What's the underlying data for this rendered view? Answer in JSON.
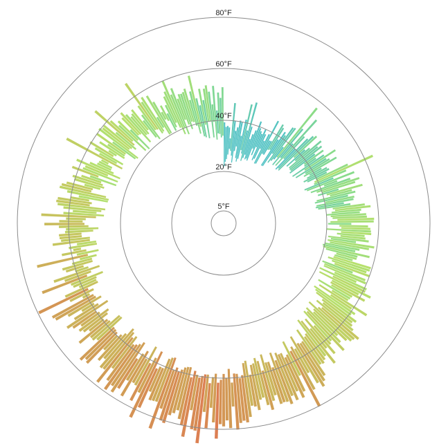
{
  "chart_data": {
    "type": "bar",
    "subtype": "radial",
    "title": "",
    "rings": [
      {
        "value": 5,
        "label": "5°F"
      },
      {
        "value": 20,
        "label": "20°F"
      },
      {
        "value": 40,
        "label": "40°F"
      },
      {
        "value": 60,
        "label": "60°F"
      },
      {
        "value": 80,
        "label": "80°F"
      }
    ],
    "radial_range": [
      0,
      80
    ],
    "bar_count": 365,
    "color_stops": [
      {
        "temp": 35,
        "color": "#52c2c4"
      },
      {
        "temp": 45,
        "color": "#8bdc88"
      },
      {
        "temp": 52,
        "color": "#b6e06c"
      },
      {
        "temp": 60,
        "color": "#c7c45e"
      },
      {
        "temp": 68,
        "color": "#d29a55"
      },
      {
        "temp": 78,
        "color": "#e8604f"
      }
    ],
    "profile_keyframes": [
      {
        "day": 0,
        "min": 26,
        "max": 35
      },
      {
        "day": 20,
        "min": 28,
        "max": 38
      },
      {
        "day": 40,
        "min": 32,
        "max": 43
      },
      {
        "day": 60,
        "min": 36,
        "max": 48
      },
      {
        "day": 80,
        "min": 40,
        "max": 52
      },
      {
        "day": 100,
        "min": 43,
        "max": 55
      },
      {
        "day": 120,
        "min": 45,
        "max": 60
      },
      {
        "day": 140,
        "min": 50,
        "max": 67
      },
      {
        "day": 160,
        "min": 55,
        "max": 72
      },
      {
        "day": 180,
        "min": 58,
        "max": 76
      },
      {
        "day": 200,
        "min": 59,
        "max": 77
      },
      {
        "day": 220,
        "min": 58,
        "max": 74
      },
      {
        "day": 240,
        "min": 56,
        "max": 68
      },
      {
        "day": 260,
        "min": 53,
        "max": 62
      },
      {
        "day": 280,
        "min": 50,
        "max": 62
      },
      {
        "day": 300,
        "min": 47,
        "max": 58
      },
      {
        "day": 320,
        "min": 44,
        "max": 55
      },
      {
        "day": 340,
        "min": 42,
        "max": 52
      },
      {
        "day": 364,
        "min": 34,
        "max": 48
      }
    ]
  }
}
